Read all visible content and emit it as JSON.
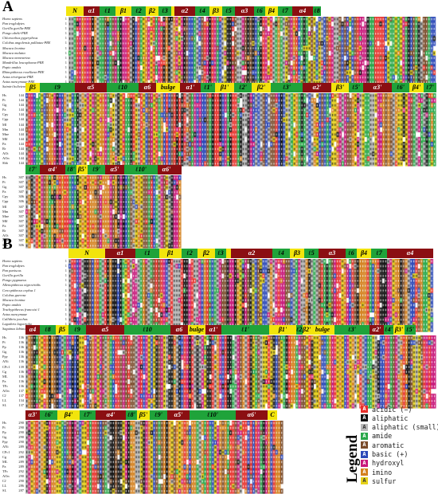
{
  "panels": {
    "A": {
      "letter": "A",
      "species": [
        "Homo sapiens",
        "Pan troglodytes",
        "Gorilla gorilla-PRE",
        "Pongo abelii-PRE",
        "Chlorocebus pygerythrus",
        "Colobus angolensis palliatus-PRE",
        "Macaca leonina",
        "Macaca mulatta",
        "Macaca nemestrina",
        "Mandrillus leucophaeus-PRE",
        "Papio anubis",
        "Rhinopithecus roxellana-PRE",
        "Aotus trivirgatus-PRE",
        "Aotus nancymaae-PRE",
        "Saimiri boliviensis-PRE"
      ],
      "rows": [
        {
          "ss": [
            {
              "label": "N",
              "kind": "strand"
            },
            {
              "label": "α1",
              "kind": "helix"
            },
            {
              "label": "ℓ1",
              "kind": "loop"
            },
            {
              "label": "β1",
              "kind": "strand"
            },
            {
              "label": "ℓ2",
              "kind": "loop"
            },
            {
              "label": "β2",
              "kind": "strand"
            },
            {
              "label": "ℓ3",
              "kind": "loop"
            },
            {
              "label": "",
              "kind": "strand"
            },
            {
              "label": "α2",
              "kind": "helix"
            },
            {
              "label": "ℓ4",
              "kind": "loop"
            },
            {
              "label": "β3",
              "kind": "strand"
            },
            {
              "label": "ℓ5",
              "kind": "loop"
            },
            {
              "label": "α3",
              "kind": "helix"
            },
            {
              "label": "ℓ6",
              "kind": "loop"
            },
            {
              "label": "β4",
              "kind": "strand"
            },
            {
              "label": "ℓ7",
              "kind": "loop"
            },
            {
              "label": "α4",
              "kind": "helix"
            },
            {
              "label": "ℓ8",
              "kind": "loop"
            }
          ],
          "abbr": [],
          "pos": [
            "1",
            "1",
            "1",
            "1",
            "1",
            "1",
            "1",
            "1",
            "1",
            "1",
            "1",
            "1",
            "1",
            "1",
            "1"
          ]
        },
        {
          "ss": [
            {
              "label": "β5",
              "kind": "strand"
            },
            {
              "label": "ℓ9",
              "kind": "loop"
            },
            {
              "label": "α5",
              "kind": "helix"
            },
            {
              "label": "ℓ10",
              "kind": "loop"
            },
            {
              "label": "α6",
              "kind": "helix"
            },
            {
              "label": "bulge",
              "kind": "strand"
            },
            {
              "label": "α1'",
              "kind": "helix"
            },
            {
              "label": "ℓ1'",
              "kind": "loop"
            },
            {
              "label": "β1'",
              "kind": "strand"
            },
            {
              "label": "ℓ2'",
              "kind": "loop"
            },
            {
              "label": "β2'",
              "kind": "strand"
            },
            {
              "label": "ℓ3'",
              "kind": "loop"
            },
            {
              "label": "α2'",
              "kind": "helix"
            },
            {
              "label": "β3'",
              "kind": "strand"
            },
            {
              "label": "ℓ5'",
              "kind": "loop"
            },
            {
              "label": "α3'",
              "kind": "helix"
            },
            {
              "label": "ℓ6'",
              "kind": "loop"
            },
            {
              "label": "β4'",
              "kind": "strand"
            },
            {
              "label": "ℓ7'",
              "kind": "loop"
            }
          ],
          "abbr": [
            "Hs",
            "Pt",
            "Gg",
            "Pa",
            "Cpy",
            "Cpp",
            "Ml",
            "Mm",
            "Mne",
            "Mlf",
            "Pa",
            "Rr",
            "AOt",
            "AOn",
            "Sbb"
          ],
          "pos": [
            "144",
            "144",
            "144",
            "144",
            "144",
            "144",
            "144",
            "144",
            "144",
            "144",
            "144",
            "144",
            "144",
            "144",
            "144"
          ]
        },
        {
          "ss": [
            {
              "label": "ℓ7'",
              "kind": "loop"
            },
            {
              "label": "α4'",
              "kind": "helix"
            },
            {
              "label": "ℓ8'",
              "kind": "loop"
            },
            {
              "label": "β5'",
              "kind": "strand"
            },
            {
              "label": "ℓ9'",
              "kind": "loop"
            },
            {
              "label": "α5'",
              "kind": "helix"
            },
            {
              "label": "ℓ10'",
              "kind": "loop"
            },
            {
              "label": "α6'",
              "kind": "helix"
            },
            {
              "label": "",
              "kind": "helix"
            }
          ],
          "abbr": [
            "Hs",
            "Pt",
            "Gg",
            "Pa",
            "Cpy",
            "Cpp",
            "Ml",
            "Mm",
            "Mne",
            "Mlf",
            "Pa",
            "Rr",
            "AOt",
            "AOn",
            "Sbb"
          ],
          "pos": [
            "307",
            "307",
            "307",
            "307",
            "306",
            "306",
            "307",
            "307",
            "307",
            "307",
            "307",
            "307",
            "307",
            "307",
            "306"
          ]
        }
      ]
    },
    "B": {
      "letter": "B",
      "species": [
        "Homo sapiens",
        "Pan troglodytes",
        "Pan paniscus",
        "Gorilla gorilla",
        "Pongo pygmaeus",
        "Allenopithecus nigroviridis",
        "Cercopithecus cephus 1",
        "Colobus guereza",
        "Macaca leonina",
        "Papio anubis",
        "Trachypithecus francoisi 1",
        "Aotus nancymaae",
        "Callithrix jacchus",
        "Lagothrix lagotricha",
        "Saguinus labiatus"
      ],
      "rows": [
        {
          "ss": [
            {
              "label": "N",
              "kind": "strand"
            },
            {
              "label": "α1",
              "kind": "helix"
            },
            {
              "label": "ℓ1",
              "kind": "loop"
            },
            {
              "label": "β1",
              "kind": "strand"
            },
            {
              "label": "ℓ2",
              "kind": "loop"
            },
            {
              "label": "β2",
              "kind": "strand"
            },
            {
              "label": "ℓ3",
              "kind": "loop"
            },
            {
              "label": "",
              "kind": "strand"
            },
            {
              "label": "α2",
              "kind": "helix"
            },
            {
              "label": "ℓ4",
              "kind": "loop"
            },
            {
              "label": "β3",
              "kind": "strand"
            },
            {
              "label": "ℓ5",
              "kind": "loop"
            },
            {
              "label": "α3",
              "kind": "helix"
            },
            {
              "label": "ℓ6",
              "kind": "loop"
            },
            {
              "label": "β4",
              "kind": "strand"
            },
            {
              "label": "ℓ7",
              "kind": "loop"
            },
            {
              "label": "α4",
              "kind": "helix"
            }
          ],
          "abbr": [],
          "pos": [
            "1",
            "1",
            "1",
            "1",
            "1",
            "1",
            "1",
            "1",
            "1",
            "1",
            "1",
            "1",
            "1",
            "1",
            "1"
          ]
        },
        {
          "ss": [
            {
              "label": "α4",
              "kind": "helix"
            },
            {
              "label": "ℓ8",
              "kind": "loop"
            },
            {
              "label": "β5",
              "kind": "strand"
            },
            {
              "label": "ℓ9",
              "kind": "loop"
            },
            {
              "label": "α5",
              "kind": "helix"
            },
            {
              "label": "ℓ10",
              "kind": "loop"
            },
            {
              "label": "α6",
              "kind": "helix"
            },
            {
              "label": "bulge",
              "kind": "strand"
            },
            {
              "label": "α1'",
              "kind": "helix"
            },
            {
              "label": "ℓ1'",
              "kind": "loop"
            },
            {
              "label": "β1'",
              "kind": "strand"
            },
            {
              "label": "ℓ2'",
              "kind": "loop"
            },
            {
              "label": "β2'",
              "kind": "strand"
            },
            {
              "label": "bulge",
              "kind": "strand"
            },
            {
              "label": "ℓ3'",
              "kind": "loop"
            },
            {
              "label": "α2'",
              "kind": "helix"
            },
            {
              "label": "ℓ4'",
              "kind": "loop"
            },
            {
              "label": "β3'",
              "kind": "strand"
            },
            {
              "label": "ℓ5'",
              "kind": "loop"
            }
          ],
          "abbr": [
            "Hs",
            "Pt",
            "Pp",
            "Gg",
            "Ppy",
            "ANi",
            "CPc1",
            "Cg",
            "ML",
            "Pa",
            "TFc",
            "AOn",
            "CJ",
            "LL",
            "SL"
          ],
          "pos": [
            "136",
            "136",
            "136",
            "136",
            "136",
            "136",
            "139",
            "136",
            "136",
            "136",
            "136",
            "137",
            "137",
            "134",
            "137"
          ]
        },
        {
          "ss": [
            {
              "label": "α3'",
              "kind": "helix"
            },
            {
              "label": "ℓ6'",
              "kind": "loop"
            },
            {
              "label": "β4'",
              "kind": "strand"
            },
            {
              "label": "ℓ7'",
              "kind": "loop"
            },
            {
              "label": "α4'",
              "kind": "helix"
            },
            {
              "label": "ℓ8'",
              "kind": "loop"
            },
            {
              "label": "β5'",
              "kind": "strand"
            },
            {
              "label": "ℓ9'",
              "kind": "loop"
            },
            {
              "label": "α5'",
              "kind": "helix"
            },
            {
              "label": "ℓ10'",
              "kind": "loop"
            },
            {
              "label": "α6'",
              "kind": "helix"
            },
            {
              "label": "C",
              "kind": "strand"
            }
          ],
          "abbr": [
            "Hs",
            "Pt",
            "Pp",
            "Gg",
            "Ppy",
            "ANi",
            "CPc1",
            "Cg",
            "ML",
            "Pa",
            "TFc",
            "AOn",
            "CJ",
            "LL",
            "SL"
          ],
          "pos": [
            "290",
            "290",
            "290",
            "290",
            "290",
            "289",
            "292",
            "289",
            "289",
            "289",
            "292",
            "290",
            "290",
            "286",
            "287"
          ]
        }
      ]
    }
  },
  "legend": {
    "title": "Legend",
    "items": [
      {
        "glyph": "A",
        "label": "acidic (−)",
        "color": "#e8302a"
      },
      {
        "glyph": "A",
        "label": "aliphatic",
        "color": "#111111"
      },
      {
        "glyph": "A",
        "label": "aliphatic (small)",
        "color": "#b8b8b8"
      },
      {
        "glyph": "A",
        "label": "amide",
        "color": "#2aa84a"
      },
      {
        "glyph": "A",
        "label": "aromatic",
        "color": "#7a4b2a"
      },
      {
        "glyph": "A",
        "label": "basic (+)",
        "color": "#2b48b8"
      },
      {
        "glyph": "A",
        "label": "hydroxyl",
        "color": "#c8187a"
      },
      {
        "glyph": "A",
        "label": "imino",
        "color": "#d4801c"
      },
      {
        "glyph": "A",
        "label": "sulfur",
        "color": "#e6d21a"
      }
    ]
  },
  "colors": {
    "helix": "#8b0f12",
    "strand": "#f2e40c",
    "loop": "#1fa33a",
    "purple_mark": "#7b3fb0"
  }
}
